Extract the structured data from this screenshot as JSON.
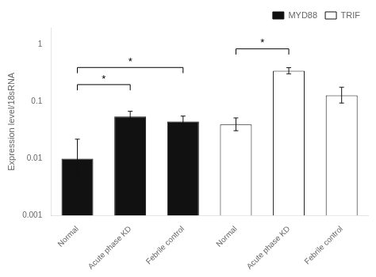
{
  "chart_data": {
    "type": "bar",
    "categories": [
      "Normal",
      "Acute phase KD",
      "Febrile control",
      "Normal",
      "Acute phase KD",
      "Febrile control"
    ],
    "series": [
      {
        "name": "MYD88",
        "color": "#111111",
        "values": [
          0.01,
          0.055,
          0.045,
          null,
          null,
          null
        ],
        "errors_upper": [
          0.012,
          0.013,
          0.011,
          null,
          null,
          null
        ],
        "errors_lower": [
          0.005,
          0.01,
          0.009,
          null,
          null,
          null
        ]
      },
      {
        "name": "TRIF",
        "color": "#ffffff",
        "values": [
          null,
          null,
          null,
          0.04,
          0.35,
          0.13
        ],
        "errors_upper": [
          null,
          null,
          null,
          0.012,
          0.048,
          0.05
        ],
        "errors_lower": [
          null,
          null,
          null,
          0.009,
          0.04,
          0.035
        ]
      }
    ],
    "ylabel": "Expression level/18sRNA",
    "log": "y",
    "ylim": [
      0.001,
      2.0
    ],
    "yticks": [
      0.001,
      0.01,
      0.1,
      1
    ],
    "grid": false,
    "legend": "upper right",
    "annotations": [
      {
        "text": "*",
        "x1": 0,
        "x2": 1,
        "y": 0.2
      },
      {
        "text": "*",
        "x1": 0,
        "x2": 2,
        "y": 0.4
      },
      {
        "text": "*",
        "x1": 3,
        "x2": 4,
        "y": 0.85
      }
    ]
  }
}
